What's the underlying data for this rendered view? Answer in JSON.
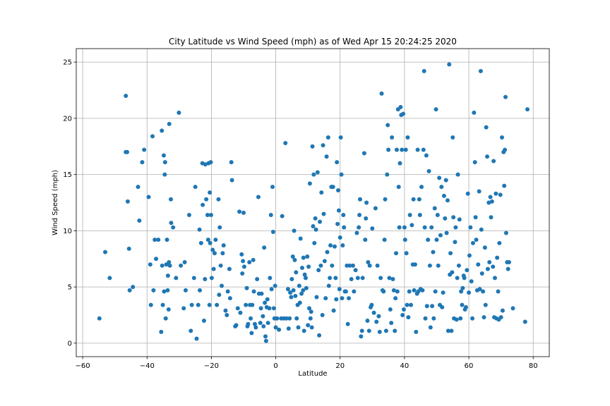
{
  "chart_data": {
    "type": "scatter",
    "title": "City Latitude vs Wind Speed (mph) as of Wed Apr 15 20:24:25 2020",
    "xlabel": "Latitude",
    "ylabel": "Wind Speed (mph)",
    "xlim": [
      -62,
      85
    ],
    "ylim": [
      -1.2,
      26.2
    ],
    "x_ticks": [
      -60,
      -40,
      -20,
      0,
      20,
      40,
      60,
      80
    ],
    "y_ticks": [
      0,
      5,
      10,
      15,
      20,
      25
    ],
    "grid": true,
    "marker_color": "#1f77b4",
    "points": [
      [
        -54.8,
        2.2
      ],
      [
        -53,
        8.1
      ],
      [
        -51.6,
        5.8
      ],
      [
        -46.6,
        22
      ],
      [
        -46.6,
        17
      ],
      [
        -46.2,
        17
      ],
      [
        -46,
        12.6
      ],
      [
        -45.6,
        8.4
      ],
      [
        -45.4,
        4.7
      ],
      [
        -44.4,
        5
      ],
      [
        -42.8,
        13.9
      ],
      [
        -42.4,
        10.9
      ],
      [
        -41.5,
        16.1
      ],
      [
        -40.9,
        17.2
      ],
      [
        -39.5,
        13
      ],
      [
        -39,
        7
      ],
      [
        -38.8,
        3.4
      ],
      [
        -38.3,
        18.4
      ],
      [
        -38,
        4.7
      ],
      [
        -37.6,
        9.2
      ],
      [
        -37.2,
        7.5
      ],
      [
        -36.5,
        9.2
      ],
      [
        -35.6,
        1
      ],
      [
        -35.4,
        18.9
      ],
      [
        -35.3,
        6.9
      ],
      [
        -35.1,
        3.4
      ],
      [
        -34.8,
        16.7
      ],
      [
        -34.7,
        4.6
      ],
      [
        -34.5,
        15
      ],
      [
        -34.4,
        16.1
      ],
      [
        -34.2,
        2.2
      ],
      [
        -34,
        7
      ],
      [
        -33.8,
        9.2
      ],
      [
        -33.6,
        4.7
      ],
      [
        -33.5,
        6
      ],
      [
        -33.3,
        3
      ],
      [
        -33.2,
        7.2
      ],
      [
        -33.1,
        19.5
      ],
      [
        -32.9,
        6.9
      ],
      [
        -32.6,
        12.8
      ],
      [
        -32.5,
        10.7
      ],
      [
        -31.9,
        10.3
      ],
      [
        -31,
        5.8
      ],
      [
        -30.1,
        20.5
      ],
      [
        -29.5,
        6.9
      ],
      [
        -28.6,
        3.1
      ],
      [
        -28.3,
        7.2
      ],
      [
        -28,
        4.7
      ],
      [
        -26.9,
        11.4
      ],
      [
        -26.4,
        1.1
      ],
      [
        -26.1,
        3.4
      ],
      [
        -25.4,
        5.8
      ],
      [
        -25,
        13.9
      ],
      [
        -24.6,
        0.4
      ],
      [
        -24.1,
        3.4
      ],
      [
        -23.7,
        10.1
      ],
      [
        -23.6,
        4.7
      ],
      [
        -23.2,
        8.9
      ],
      [
        -22.8,
        16
      ],
      [
        -22.7,
        12.3
      ],
      [
        -22.3,
        2
      ],
      [
        -22,
        5.7
      ],
      [
        -21.9,
        15.9
      ],
      [
        -21.6,
        12.8
      ],
      [
        -21.2,
        11.4
      ],
      [
        -21,
        9.2
      ],
      [
        -20.9,
        16
      ],
      [
        -20.6,
        3.4
      ],
      [
        -20.5,
        13.4
      ],
      [
        -20.4,
        8.9
      ],
      [
        -20.2,
        16.1
      ],
      [
        -20.1,
        11.4
      ],
      [
        -19.9,
        5.8
      ],
      [
        -19.6,
        8.3
      ],
      [
        -19.3,
        6.6
      ],
      [
        -19,
        8
      ],
      [
        -18.7,
        9.2
      ],
      [
        -18.3,
        3.4
      ],
      [
        -17.8,
        12.8
      ],
      [
        -17.6,
        4.3
      ],
      [
        -17.4,
        10.3
      ],
      [
        -17.1,
        6.9
      ],
      [
        -16.8,
        5.1
      ],
      [
        -16.5,
        8
      ],
      [
        -16.2,
        8.7
      ],
      [
        -15.6,
        2.9
      ],
      [
        -15.2,
        2.5
      ],
      [
        -14.9,
        4.6
      ],
      [
        -14.4,
        6.6
      ],
      [
        -14.2,
        4
      ],
      [
        -13.8,
        16.1
      ],
      [
        -13.6,
        14.5
      ],
      [
        -12.6,
        1.5
      ],
      [
        -12.3,
        1.6
      ],
      [
        -11.8,
        3.1
      ],
      [
        -11.3,
        11.7
      ],
      [
        -11,
        2.7
      ],
      [
        -10.6,
        7.9
      ],
      [
        -10.4,
        6.2
      ],
      [
        -10.2,
        7.3
      ],
      [
        -10,
        11.6
      ],
      [
        -9.8,
        6.8
      ],
      [
        -9.3,
        3.4
      ],
      [
        -9,
        4.9
      ],
      [
        -8.8,
        1.5
      ],
      [
        -8.6,
        1.7
      ],
      [
        -8.2,
        7.2
      ],
      [
        -8,
        3.4
      ],
      [
        -7.8,
        2.2
      ],
      [
        -7.5,
        0.9
      ],
      [
        -7.3,
        3.4
      ],
      [
        -7,
        7.4
      ],
      [
        -6.8,
        4.6
      ],
      [
        -6.5,
        1.7
      ],
      [
        -6.2,
        1.4
      ],
      [
        -5.8,
        5.7
      ],
      [
        -5.4,
        13
      ],
      [
        -5.2,
        4.4
      ],
      [
        -4.8,
        1.8
      ],
      [
        -4.6,
        3.1
      ],
      [
        -4.4,
        4.4
      ],
      [
        -4,
        2.4
      ],
      [
        -3.8,
        1.5
      ],
      [
        -3.6,
        8.5
      ],
      [
        -3.4,
        3.6
      ],
      [
        -3.2,
        0.6
      ],
      [
        -3,
        0.2
      ],
      [
        -2.8,
        3.2
      ],
      [
        -2.6,
        3.9
      ],
      [
        -2.4,
        1.8
      ],
      [
        -2,
        3.1
      ],
      [
        -1.8,
        5.8
      ],
      [
        -1.5,
        11.4
      ],
      [
        -1.3,
        4.8
      ],
      [
        -1,
        13.9
      ],
      [
        -0.8,
        9.9
      ],
      [
        -0.6,
        3.1
      ],
      [
        -0.4,
        2.2
      ],
      [
        -0.2,
        5.1
      ],
      [
        0,
        1.4
      ],
      [
        0.4,
        2.2
      ],
      [
        1,
        1.2
      ],
      [
        1.7,
        2.2
      ],
      [
        2,
        11.3
      ],
      [
        2.5,
        2.2
      ],
      [
        3,
        17.8
      ],
      [
        3.3,
        2.2
      ],
      [
        3.8,
        4.8
      ],
      [
        4,
        1.3
      ],
      [
        4.3,
        2.2
      ],
      [
        4.5,
        4.5
      ],
      [
        4.8,
        4.1
      ],
      [
        5,
        5.7
      ],
      [
        5.3,
        7.7
      ],
      [
        5.5,
        4.7
      ],
      [
        5.7,
        10
      ],
      [
        5.9,
        7.4
      ],
      [
        6.1,
        4.2
      ],
      [
        6.3,
        6.3
      ],
      [
        6.5,
        2.2
      ],
      [
        6.8,
        3.4
      ],
      [
        7,
        1.4
      ],
      [
        7.3,
        5.1
      ],
      [
        7.5,
        3.6
      ],
      [
        7.7,
        9.3
      ],
      [
        8,
        4.4
      ],
      [
        8.2,
        6.7
      ],
      [
        8.5,
        4.7
      ],
      [
        8.6,
        7.6
      ],
      [
        8.8,
        1.1
      ],
      [
        9,
        6.1
      ],
      [
        9.3,
        5.8
      ],
      [
        9.5,
        4.9
      ],
      [
        9.8,
        7.7
      ],
      [
        10,
        1.6
      ],
      [
        10.2,
        6.8
      ],
      [
        10.4,
        3.1
      ],
      [
        10.6,
        14.2
      ],
      [
        10.8,
        2.2
      ],
      [
        11,
        2.8
      ],
      [
        11.2,
        1.4
      ],
      [
        11.4,
        17.5
      ],
      [
        11.6,
        10.4
      ],
      [
        11.8,
        15
      ],
      [
        12,
        8.9
      ],
      [
        12.3,
        11.1
      ],
      [
        12.5,
        10.1
      ],
      [
        12.7,
        4.1
      ],
      [
        13,
        15.2
      ],
      [
        13.3,
        6.5
      ],
      [
        13.5,
        0.7
      ],
      [
        13.7,
        10.8
      ],
      [
        14,
        6.9
      ],
      [
        14.2,
        13.4
      ],
      [
        14.5,
        2.5
      ],
      [
        14.7,
        17.6
      ],
      [
        14.9,
        11.5
      ],
      [
        15.2,
        7.3
      ],
      [
        15.5,
        4
      ],
      [
        15.8,
        16.6
      ],
      [
        16,
        8.1
      ],
      [
        16.3,
        18.3
      ],
      [
        16.5,
        5.1
      ],
      [
        16.8,
        5.8
      ],
      [
        17,
        8.7
      ],
      [
        17.3,
        13.9
      ],
      [
        17.5,
        6.9
      ],
      [
        17.8,
        13.9
      ],
      [
        18,
        2.9
      ],
      [
        18.3,
        8.6
      ],
      [
        18.6,
        5.8
      ],
      [
        18.8,
        3.9
      ],
      [
        19,
        16.1
      ],
      [
        19.2,
        10.6
      ],
      [
        19.4,
        13.6
      ],
      [
        19.6,
        11.8
      ],
      [
        19.8,
        4.8
      ],
      [
        20,
        9.4
      ],
      [
        20.2,
        18.3
      ],
      [
        20.4,
        15
      ],
      [
        20.6,
        4
      ],
      [
        20.8,
        8.7
      ],
      [
        21,
        11.4
      ],
      [
        21.2,
        10.3
      ],
      [
        21.5,
        4.6
      ],
      [
        21.8,
        4.6
      ],
      [
        22.1,
        6.9
      ],
      [
        22.4,
        1.7
      ],
      [
        22.7,
        4
      ],
      [
        23,
        6.9
      ],
      [
        23.5,
        5.7
      ],
      [
        24,
        6.9
      ],
      [
        24.3,
        4.6
      ],
      [
        24.8,
        6.5
      ],
      [
        25.2,
        9.8
      ],
      [
        25.5,
        5.8
      ],
      [
        25.8,
        10.3
      ],
      [
        26,
        11.4
      ],
      [
        26.2,
        12.8
      ],
      [
        26.5,
        0.6
      ],
      [
        26.8,
        1.1
      ],
      [
        27,
        5.8
      ],
      [
        27.5,
        16.9
      ],
      [
        27.8,
        9.2
      ],
      [
        28,
        11.1
      ],
      [
        28.2,
        12.5
      ],
      [
        28.5,
        2
      ],
      [
        28.7,
        7.2
      ],
      [
        29,
        1.1
      ],
      [
        29.2,
        6.9
      ],
      [
        29.5,
        3.2
      ],
      [
        29.8,
        3.4
      ],
      [
        30,
        10.2
      ],
      [
        30.5,
        2.7
      ],
      [
        31,
        12
      ],
      [
        31.3,
        1.9
      ],
      [
        31.6,
        6.9
      ],
      [
        32,
        2.4
      ],
      [
        32.3,
        1
      ],
      [
        32.6,
        5.8
      ],
      [
        32.9,
        22.2
      ],
      [
        33.2,
        4.7
      ],
      [
        33.5,
        4.6
      ],
      [
        33.8,
        9.2
      ],
      [
        34,
        12.8
      ],
      [
        34.3,
        1.1
      ],
      [
        34.6,
        15
      ],
      [
        34.8,
        19.4
      ],
      [
        35,
        17.2
      ],
      [
        35.3,
        5.8
      ],
      [
        35.6,
        3
      ],
      [
        35.9,
        1.8
      ],
      [
        36.1,
        18.3
      ],
      [
        36.4,
        5.7
      ],
      [
        36.7,
        4.7
      ],
      [
        37,
        1.1
      ],
      [
        37.2,
        4
      ],
      [
        37.4,
        8
      ],
      [
        37.6,
        17.2
      ],
      [
        37.8,
        4.6
      ],
      [
        38,
        20.8
      ],
      [
        38.2,
        13.9
      ],
      [
        38.4,
        10.3
      ],
      [
        38.6,
        16
      ],
      [
        38.8,
        21
      ],
      [
        39,
        20.3
      ],
      [
        39.2,
        17.2
      ],
      [
        39.4,
        2.5
      ],
      [
        39.6,
        20.4
      ],
      [
        39.8,
        3
      ],
      [
        40,
        10.3
      ],
      [
        40.2,
        9.2
      ],
      [
        40.4,
        17.2
      ],
      [
        40.6,
        8
      ],
      [
        40.8,
        3.4
      ],
      [
        41,
        18.3
      ],
      [
        41.2,
        2.3
      ],
      [
        41.5,
        4.6
      ],
      [
        41.7,
        11.4
      ],
      [
        42,
        3.4
      ],
      [
        42.3,
        10.5
      ],
      [
        42.6,
        7
      ],
      [
        42.8,
        12.8
      ],
      [
        43,
        4.7
      ],
      [
        43.3,
        7
      ],
      [
        43.6,
        1
      ],
      [
        43.9,
        4.4
      ],
      [
        44.1,
        17.2
      ],
      [
        44.3,
        4.6
      ],
      [
        44.6,
        12.8
      ],
      [
        44.8,
        11.4
      ],
      [
        45,
        4.8
      ],
      [
        45.3,
        13.9
      ],
      [
        45.6,
        4.7
      ],
      [
        45.9,
        17.2
      ],
      [
        46.1,
        24.2
      ],
      [
        46.3,
        10.3
      ],
      [
        46.5,
        2.2
      ],
      [
        46.8,
        16.7
      ],
      [
        47,
        3.3
      ],
      [
        47.3,
        9.2
      ],
      [
        47.6,
        15.3
      ],
      [
        47.9,
        6.9
      ],
      [
        48.1,
        1.4
      ],
      [
        48.4,
        10.3
      ],
      [
        48.6,
        3.3
      ],
      [
        48.9,
        8.1
      ],
      [
        49.1,
        2.2
      ],
      [
        49.4,
        12
      ],
      [
        49.6,
        4.6
      ],
      [
        49.8,
        20.8
      ],
      [
        50,
        9.2
      ],
      [
        50.3,
        11.4
      ],
      [
        50.5,
        6.9
      ],
      [
        50.8,
        14.7
      ],
      [
        51,
        3.4
      ],
      [
        51.2,
        9.6
      ],
      [
        51.5,
        13.9
      ],
      [
        51.7,
        3.2
      ],
      [
        52,
        4.5
      ],
      [
        52.3,
        13.1
      ],
      [
        52.6,
        11.1
      ],
      [
        52.9,
        14.5
      ],
      [
        53.1,
        9.8
      ],
      [
        53.4,
        12.7
      ],
      [
        53.6,
        1.1
      ],
      [
        53.9,
        24.8
      ],
      [
        54.1,
        6.1
      ],
      [
        54.3,
        8
      ],
      [
        54.6,
        1.1
      ],
      [
        54.8,
        6.3
      ],
      [
        55,
        18.3
      ],
      [
        55.2,
        11.2
      ],
      [
        55.4,
        2.2
      ],
      [
        55.7,
        9
      ],
      [
        55.9,
        10.3
      ],
      [
        56.2,
        2.1
      ],
      [
        56.4,
        5.8
      ],
      [
        56.6,
        15
      ],
      [
        56.9,
        6.9
      ],
      [
        57.1,
        11
      ],
      [
        57.4,
        2.2
      ],
      [
        57.6,
        4.6
      ],
      [
        57.9,
        3.4
      ],
      [
        58.1,
        4.9
      ],
      [
        58.4,
        6
      ],
      [
        58.6,
        5.8
      ],
      [
        58.8,
        3
      ],
      [
        59.1,
        3.2
      ],
      [
        59.4,
        6.5
      ],
      [
        59.7,
        13.3
      ],
      [
        60,
        4.5
      ],
      [
        60.2,
        7.8
      ],
      [
        60.5,
        10.3
      ],
      [
        60.8,
        5.5
      ],
      [
        61.1,
        2.2
      ],
      [
        61.3,
        8.9
      ],
      [
        61.6,
        20.5
      ],
      [
        61.9,
        16.1
      ],
      [
        62.1,
        11.2
      ],
      [
        62.3,
        9.2
      ],
      [
        62.6,
        4.7
      ],
      [
        62.9,
        7
      ],
      [
        63.2,
        13.5
      ],
      [
        63.4,
        4.8
      ],
      [
        63.7,
        24.2
      ],
      [
        63.9,
        10.1
      ],
      [
        64.1,
        6.2
      ],
      [
        64.4,
        4.6
      ],
      [
        64.7,
        2.3
      ],
      [
        65,
        8.5
      ],
      [
        65.2,
        3.4
      ],
      [
        65.4,
        19.2
      ],
      [
        65.7,
        16.6
      ],
      [
        65.9,
        6.6
      ],
      [
        66.2,
        12.5
      ],
      [
        66.4,
        7.2
      ],
      [
        66.7,
        13
      ],
      [
        66.9,
        11.2
      ],
      [
        67.2,
        12.6
      ],
      [
        67.5,
        6.8
      ],
      [
        67.7,
        16.2
      ],
      [
        67.9,
        2.3
      ],
      [
        68.1,
        5.8
      ],
      [
        68.4,
        13.3
      ],
      [
        68.6,
        2.2
      ],
      [
        68.8,
        7.6
      ],
      [
        69.1,
        4.6
      ],
      [
        69.3,
        2.1
      ],
      [
        69.5,
        8.9
      ],
      [
        69.8,
        13.2
      ],
      [
        70,
        2.3
      ],
      [
        70.3,
        18.3
      ],
      [
        70.5,
        2.9
      ],
      [
        70.8,
        17
      ],
      [
        71,
        14
      ],
      [
        71.2,
        17.2
      ],
      [
        71.4,
        21.9
      ],
      [
        71.6,
        9.8
      ],
      [
        71.9,
        7.2
      ],
      [
        72.2,
        6.6
      ],
      [
        72.5,
        7.2
      ],
      [
        73.7,
        3.1
      ],
      [
        77.5,
        1.9
      ],
      [
        78.2,
        20.8
      ]
    ]
  }
}
